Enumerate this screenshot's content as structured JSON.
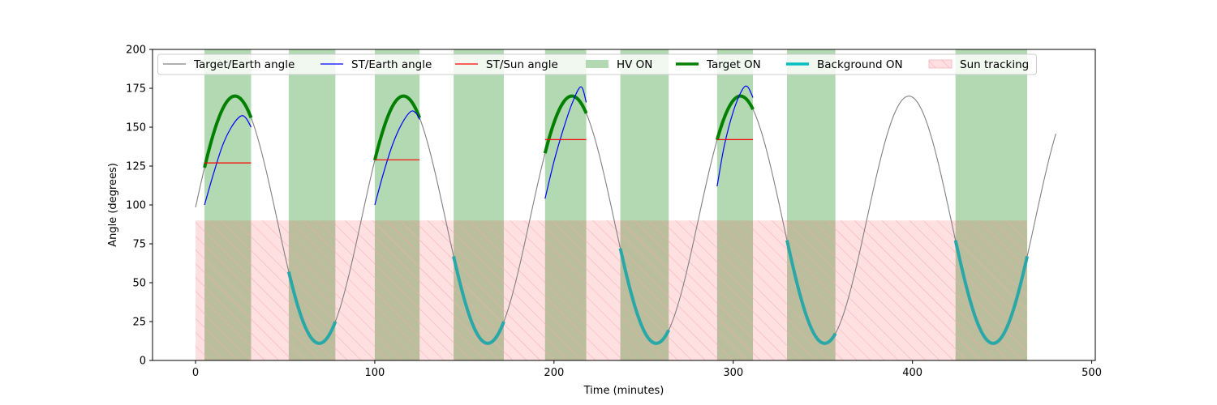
{
  "chart_data": {
    "type": "line",
    "xlabel": "Time (minutes)",
    "ylabel": "Angle (degrees)",
    "xlim": [
      -24,
      502
    ],
    "ylim": [
      0,
      200
    ],
    "xticks": [
      0,
      100,
      200,
      300,
      400,
      500
    ],
    "yticks": [
      0,
      25,
      50,
      75,
      100,
      125,
      150,
      175,
      200
    ],
    "grid": false,
    "legend_placement": "top",
    "legend": [
      {
        "label": "Target/Earth angle",
        "kind": "line",
        "color": "#808080"
      },
      {
        "label": "ST/Earth angle",
        "kind": "line",
        "color": "#0000ff"
      },
      {
        "label": "ST/Sun angle",
        "kind": "line",
        "color": "#ff0000"
      },
      {
        "label": "HV ON",
        "kind": "patch",
        "color": "#b3d9b3"
      },
      {
        "label": "Target ON",
        "kind": "thickline",
        "color": "#008000"
      },
      {
        "label": "Background ON",
        "kind": "thickline",
        "color": "#00bfbf"
      },
      {
        "label": "Sun tracking",
        "kind": "hatch",
        "color": "#ffdfe2"
      }
    ],
    "target_earth_model": {
      "description": "triangle-like cosine oscillation",
      "period_min": 94,
      "min_deg": 11,
      "max_deg": 170,
      "first_max_time": 22,
      "x_range": [
        0,
        480
      ]
    },
    "hv_on_intervals": [
      [
        5,
        31
      ],
      [
        52,
        78
      ],
      [
        100,
        125
      ],
      [
        144,
        172
      ],
      [
        195,
        218
      ],
      [
        237,
        264
      ],
      [
        291,
        311
      ],
      [
        330,
        357
      ],
      [
        424,
        464
      ]
    ],
    "sun_tracking_intervals": [
      [
        0,
        464
      ]
    ],
    "sun_tracking_level_deg": 90,
    "target_on_intervals": [
      [
        5,
        31
      ],
      [
        100,
        125
      ],
      [
        195,
        218
      ],
      [
        291,
        311
      ]
    ],
    "background_on_intervals": [
      [
        52,
        78
      ],
      [
        144,
        172
      ],
      [
        237,
        264
      ],
      [
        330,
        357
      ],
      [
        424,
        464
      ]
    ],
    "st_earth_angle": [
      {
        "x": [
          5,
          10,
          15,
          20,
          25,
          28,
          31
        ],
        "y": [
          100,
          120,
          138,
          150,
          157,
          156,
          150
        ]
      },
      {
        "x": [
          100,
          105,
          110,
          115,
          120,
          123,
          125
        ],
        "y": [
          100,
          121,
          139,
          152,
          160,
          159,
          155
        ]
      },
      {
        "x": [
          195,
          200,
          205,
          210,
          215,
          218
        ],
        "y": [
          104,
          128,
          148,
          165,
          176,
          166
        ]
      },
      {
        "x": [
          291,
          295,
          300,
          305,
          308,
          311
        ],
        "y": [
          112,
          138,
          160,
          174,
          176,
          169
        ]
      }
    ],
    "st_sun_angle": [
      {
        "x": [
          5,
          31
        ],
        "y": [
          127,
          127
        ]
      },
      {
        "x": [
          100,
          125
        ],
        "y": [
          129,
          129
        ]
      },
      {
        "x": [
          195,
          218
        ],
        "y": [
          142,
          142
        ]
      },
      {
        "x": [
          291,
          311
        ],
        "y": [
          142,
          142
        ]
      }
    ]
  }
}
